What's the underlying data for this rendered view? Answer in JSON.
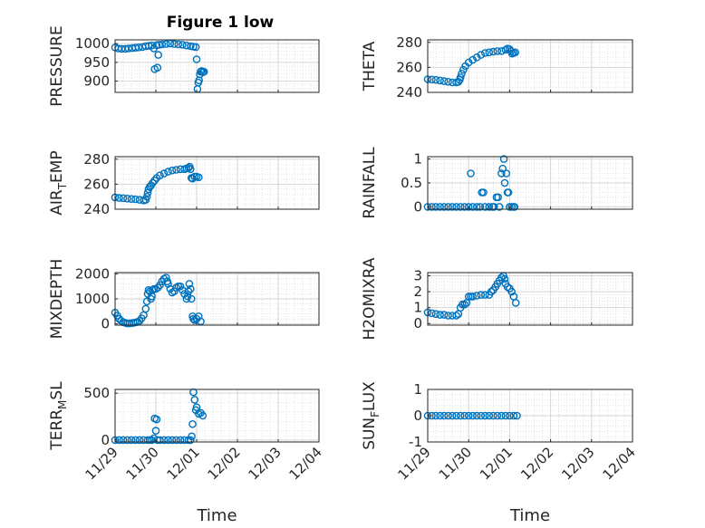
{
  "figure": {
    "title": "Figure 1 low"
  },
  "colors": {
    "marker": "#0072BD",
    "axis": "#262626",
    "grid": "#d6d6d6",
    "background": "#ffffff"
  },
  "chart_data": [
    {
      "type": "scatter",
      "ylabel": "PRESSURE",
      "ylim": [
        870,
        1010
      ],
      "yticks": [
        900,
        950,
        1000
      ],
      "xlim": [
        "11/29",
        "12/04"
      ],
      "xticks": [
        "11/29",
        "11/30",
        "12/01",
        "12/02",
        "12/03",
        "12/04"
      ],
      "xlabel": "",
      "grid": true,
      "points": [
        [
          0.0,
          990
        ],
        [
          0.08,
          987
        ],
        [
          0.16,
          986
        ],
        [
          0.25,
          986
        ],
        [
          0.33,
          987
        ],
        [
          0.42,
          988
        ],
        [
          0.5,
          989
        ],
        [
          0.58,
          990
        ],
        [
          0.67,
          991
        ],
        [
          0.75,
          993
        ],
        [
          0.83,
          994
        ],
        [
          0.9,
          995
        ],
        [
          0.95,
          987
        ],
        [
          0.97,
          932
        ],
        [
          1.02,
          996
        ],
        [
          1.04,
          936
        ],
        [
          1.06,
          970
        ],
        [
          1.08,
          997
        ],
        [
          1.15,
          998
        ],
        [
          1.25,
          999
        ],
        [
          1.35,
          1000
        ],
        [
          1.45,
          999
        ],
        [
          1.55,
          998
        ],
        [
          1.65,
          997
        ],
        [
          1.75,
          995
        ],
        [
          1.85,
          993
        ],
        [
          1.92,
          992
        ],
        [
          1.98,
          991
        ],
        [
          2.0,
          958
        ],
        [
          2.02,
          879
        ],
        [
          2.04,
          896
        ],
        [
          2.06,
          902
        ],
        [
          2.08,
          918
        ],
        [
          2.1,
          925
        ],
        [
          2.12,
          927
        ],
        [
          2.15,
          924
        ],
        [
          2.18,
          925
        ]
      ]
    },
    {
      "type": "scatter",
      "ylabel": "THETA",
      "ylim": [
        240,
        282
      ],
      "yticks": [
        240,
        260,
        280
      ],
      "xlim": [
        "11/29",
        "12/04"
      ],
      "xticks": [
        "11/29",
        "11/30",
        "12/01",
        "12/02",
        "12/03",
        "12/04"
      ],
      "xlabel": "",
      "grid": true,
      "points": [
        [
          0.0,
          250.5
        ],
        [
          0.1,
          250.3
        ],
        [
          0.2,
          250
        ],
        [
          0.3,
          249.5
        ],
        [
          0.4,
          249
        ],
        [
          0.5,
          248.5
        ],
        [
          0.6,
          248
        ],
        [
          0.7,
          248
        ],
        [
          0.75,
          248.5
        ],
        [
          0.78,
          250
        ],
        [
          0.8,
          252
        ],
        [
          0.83,
          255
        ],
        [
          0.87,
          258
        ],
        [
          0.92,
          261
        ],
        [
          1.0,
          264
        ],
        [
          1.1,
          266
        ],
        [
          1.2,
          268
        ],
        [
          1.3,
          270
        ],
        [
          1.4,
          271.5
        ],
        [
          1.5,
          272
        ],
        [
          1.6,
          272.5
        ],
        [
          1.7,
          273
        ],
        [
          1.8,
          273
        ],
        [
          1.9,
          274
        ],
        [
          1.95,
          275
        ],
        [
          2.0,
          274.5
        ],
        [
          2.03,
          273
        ],
        [
          2.06,
          271
        ],
        [
          2.1,
          271.5
        ],
        [
          2.14,
          272
        ]
      ]
    },
    {
      "type": "scatter",
      "ylabel": "AIR_TEMP",
      "ylim": [
        240,
        282
      ],
      "yticks": [
        240,
        260,
        280
      ],
      "xlim": [
        "11/29",
        "12/04"
      ],
      "xticks": [
        "11/29",
        "11/30",
        "12/01",
        "12/02",
        "12/03",
        "12/04"
      ],
      "xlabel": "",
      "grid": true,
      "points": [
        [
          0.0,
          249.5
        ],
        [
          0.1,
          249
        ],
        [
          0.2,
          248.8
        ],
        [
          0.3,
          248.5
        ],
        [
          0.4,
          248.2
        ],
        [
          0.5,
          248
        ],
        [
          0.6,
          247.5
        ],
        [
          0.7,
          247
        ],
        [
          0.75,
          247.5
        ],
        [
          0.78,
          250
        ],
        [
          0.8,
          253
        ],
        [
          0.82,
          256
        ],
        [
          0.85,
          258
        ],
        [
          0.88,
          259
        ],
        [
          0.92,
          261
        ],
        [
          0.97,
          263
        ],
        [
          1.02,
          265
        ],
        [
          1.1,
          267
        ],
        [
          1.2,
          268.5
        ],
        [
          1.3,
          270
        ],
        [
          1.4,
          271
        ],
        [
          1.5,
          271.5
        ],
        [
          1.6,
          272
        ],
        [
          1.7,
          272
        ],
        [
          1.75,
          272.5
        ],
        [
          1.8,
          273
        ],
        [
          1.83,
          274
        ],
        [
          1.85,
          272
        ],
        [
          1.87,
          265
        ],
        [
          1.9,
          264.5
        ],
        [
          1.95,
          266
        ],
        [
          2.0,
          266
        ],
        [
          2.05,
          265.5
        ]
      ]
    },
    {
      "type": "scatter",
      "ylabel": "RAINFALL",
      "ylim": [
        -0.05,
        1.05
      ],
      "yticks": [
        0,
        0.5,
        1
      ],
      "xlim": [
        "11/29",
        "12/04"
      ],
      "xticks": [
        "11/29",
        "11/30",
        "12/01",
        "12/02",
        "12/03",
        "12/04"
      ],
      "xlabel": "",
      "grid": true,
      "points": [
        [
          0.0,
          0
        ],
        [
          0.1,
          0
        ],
        [
          0.2,
          0
        ],
        [
          0.3,
          0
        ],
        [
          0.4,
          0
        ],
        [
          0.5,
          0
        ],
        [
          0.6,
          0
        ],
        [
          0.7,
          0
        ],
        [
          0.8,
          0
        ],
        [
          0.9,
          0
        ],
        [
          1.0,
          0
        ],
        [
          1.05,
          0.7
        ],
        [
          1.1,
          0
        ],
        [
          1.2,
          0
        ],
        [
          1.28,
          0
        ],
        [
          1.32,
          0.3
        ],
        [
          1.36,
          0.3
        ],
        [
          1.4,
          0
        ],
        [
          1.5,
          0
        ],
        [
          1.58,
          0
        ],
        [
          1.62,
          0
        ],
        [
          1.68,
          0.2
        ],
        [
          1.72,
          0.2
        ],
        [
          1.75,
          0
        ],
        [
          1.8,
          0.7
        ],
        [
          1.83,
          0.8
        ],
        [
          1.86,
          1.0
        ],
        [
          1.88,
          0.5
        ],
        [
          1.92,
          0.7
        ],
        [
          1.95,
          0.3
        ],
        [
          1.97,
          0.3
        ],
        [
          2.0,
          0
        ],
        [
          2.05,
          0
        ],
        [
          2.1,
          0
        ],
        [
          2.12,
          0
        ]
      ]
    },
    {
      "type": "scatter",
      "ylabel": "MIXDEPTH",
      "ylim": [
        -50,
        2050
      ],
      "yticks": [
        0,
        1000,
        2000
      ],
      "xlim": [
        "11/29",
        "12/04"
      ],
      "xticks": [
        "11/29",
        "11/30",
        "12/01",
        "12/02",
        "12/03",
        "12/04"
      ],
      "xlabel": "",
      "grid": true,
      "points": [
        [
          0.0,
          450
        ],
        [
          0.05,
          330
        ],
        [
          0.1,
          200
        ],
        [
          0.15,
          120
        ],
        [
          0.2,
          70
        ],
        [
          0.25,
          40
        ],
        [
          0.3,
          20
        ],
        [
          0.35,
          20
        ],
        [
          0.4,
          30
        ],
        [
          0.45,
          40
        ],
        [
          0.5,
          60
        ],
        [
          0.55,
          80
        ],
        [
          0.6,
          120
        ],
        [
          0.65,
          220
        ],
        [
          0.7,
          350
        ],
        [
          0.75,
          600
        ],
        [
          0.78,
          900
        ],
        [
          0.8,
          1200
        ],
        [
          0.82,
          1350
        ],
        [
          0.85,
          1300
        ],
        [
          0.88,
          1000
        ],
        [
          0.9,
          1100
        ],
        [
          0.92,
          1350
        ],
        [
          0.95,
          1400
        ],
        [
          1.0,
          1400
        ],
        [
          1.05,
          1450
        ],
        [
          1.1,
          1550
        ],
        [
          1.15,
          1700
        ],
        [
          1.2,
          1800
        ],
        [
          1.25,
          1850
        ],
        [
          1.28,
          1700
        ],
        [
          1.3,
          1600
        ],
        [
          1.35,
          1400
        ],
        [
          1.4,
          1250
        ],
        [
          1.45,
          1300
        ],
        [
          1.5,
          1450
        ],
        [
          1.55,
          1500
        ],
        [
          1.6,
          1500
        ],
        [
          1.65,
          1350
        ],
        [
          1.7,
          1200
        ],
        [
          1.75,
          1000
        ],
        [
          1.78,
          1100
        ],
        [
          1.8,
          1300
        ],
        [
          1.82,
          1600
        ],
        [
          1.85,
          1400
        ],
        [
          1.87,
          1000
        ],
        [
          1.9,
          300
        ],
        [
          1.92,
          200
        ],
        [
          1.95,
          150
        ],
        [
          2.0,
          200
        ],
        [
          2.05,
          300
        ],
        [
          2.1,
          100
        ]
      ]
    },
    {
      "type": "scatter",
      "ylabel": "H2OMIXRA",
      "ylim": [
        -0.1,
        3.2
      ],
      "yticks": [
        0,
        1,
        2,
        3
      ],
      "xlim": [
        "11/29",
        "12/04"
      ],
      "xticks": [
        "11/29",
        "11/30",
        "12/01",
        "12/02",
        "12/03",
        "12/04"
      ],
      "xlabel": "",
      "grid": true,
      "points": [
        [
          0.0,
          0.7
        ],
        [
          0.1,
          0.65
        ],
        [
          0.2,
          0.6
        ],
        [
          0.3,
          0.55
        ],
        [
          0.4,
          0.55
        ],
        [
          0.5,
          0.5
        ],
        [
          0.6,
          0.5
        ],
        [
          0.7,
          0.5
        ],
        [
          0.75,
          0.6
        ],
        [
          0.8,
          1.0
        ],
        [
          0.85,
          1.2
        ],
        [
          0.9,
          1.2
        ],
        [
          0.95,
          1.3
        ],
        [
          1.0,
          1.7
        ],
        [
          1.05,
          1.7
        ],
        [
          1.1,
          1.7
        ],
        [
          1.2,
          1.75
        ],
        [
          1.3,
          1.8
        ],
        [
          1.4,
          1.8
        ],
        [
          1.5,
          1.8
        ],
        [
          1.55,
          2.0
        ],
        [
          1.6,
          2.1
        ],
        [
          1.65,
          2.3
        ],
        [
          1.7,
          2.5
        ],
        [
          1.75,
          2.7
        ],
        [
          1.8,
          2.9
        ],
        [
          1.85,
          3.0
        ],
        [
          1.88,
          2.8
        ],
        [
          1.9,
          2.5
        ],
        [
          1.95,
          2.3
        ],
        [
          2.0,
          2.2
        ],
        [
          2.05,
          2.0
        ],
        [
          2.1,
          1.7
        ],
        [
          2.15,
          1.3
        ]
      ]
    },
    {
      "type": "scatter",
      "ylabel": "TERR_MSL",
      "ylim": [
        -20,
        540
      ],
      "yticks": [
        0,
        500
      ],
      "xlim": [
        "11/29",
        "12/04"
      ],
      "xticks": [
        "11/29",
        "11/30",
        "12/01",
        "12/02",
        "12/03",
        "12/04"
      ],
      "xlabel": "Time",
      "grid": true,
      "points": [
        [
          0.0,
          0
        ],
        [
          0.1,
          0
        ],
        [
          0.2,
          0
        ],
        [
          0.3,
          0
        ],
        [
          0.4,
          0
        ],
        [
          0.5,
          0
        ],
        [
          0.6,
          0
        ],
        [
          0.7,
          0
        ],
        [
          0.8,
          0
        ],
        [
          0.85,
          0
        ],
        [
          0.9,
          0
        ],
        [
          0.95,
          20
        ],
        [
          0.97,
          230
        ],
        [
          1.0,
          100
        ],
        [
          1.02,
          220
        ],
        [
          1.04,
          0
        ],
        [
          1.1,
          0
        ],
        [
          1.2,
          0
        ],
        [
          1.3,
          0
        ],
        [
          1.4,
          0
        ],
        [
          1.5,
          0
        ],
        [
          1.6,
          0
        ],
        [
          1.7,
          0
        ],
        [
          1.8,
          0
        ],
        [
          1.85,
          0
        ],
        [
          1.88,
          40
        ],
        [
          1.9,
          170
        ],
        [
          1.92,
          510
        ],
        [
          1.95,
          430
        ],
        [
          1.98,
          320
        ],
        [
          2.0,
          350
        ],
        [
          2.05,
          280
        ],
        [
          2.1,
          290
        ],
        [
          2.15,
          260
        ]
      ]
    },
    {
      "type": "scatter",
      "ylabel": "SUN_FLUX",
      "ylim": [
        -1,
        1
      ],
      "yticks": [
        -1,
        0,
        1
      ],
      "xlim": [
        "11/29",
        "12/04"
      ],
      "xticks": [
        "11/29",
        "11/30",
        "12/01",
        "12/02",
        "12/03",
        "12/04"
      ],
      "xlabel": "Time",
      "grid": true,
      "points": [
        [
          0.0,
          0
        ],
        [
          0.1,
          0
        ],
        [
          0.2,
          0
        ],
        [
          0.3,
          0
        ],
        [
          0.4,
          0
        ],
        [
          0.5,
          0
        ],
        [
          0.6,
          0
        ],
        [
          0.7,
          0
        ],
        [
          0.8,
          0
        ],
        [
          0.9,
          0
        ],
        [
          1.0,
          0
        ],
        [
          1.1,
          0
        ],
        [
          1.2,
          0
        ],
        [
          1.3,
          0
        ],
        [
          1.4,
          0
        ],
        [
          1.5,
          0
        ],
        [
          1.6,
          0
        ],
        [
          1.7,
          0
        ],
        [
          1.8,
          0
        ],
        [
          1.9,
          0
        ],
        [
          2.0,
          0
        ],
        [
          2.1,
          0
        ],
        [
          2.18,
          0
        ]
      ]
    }
  ]
}
